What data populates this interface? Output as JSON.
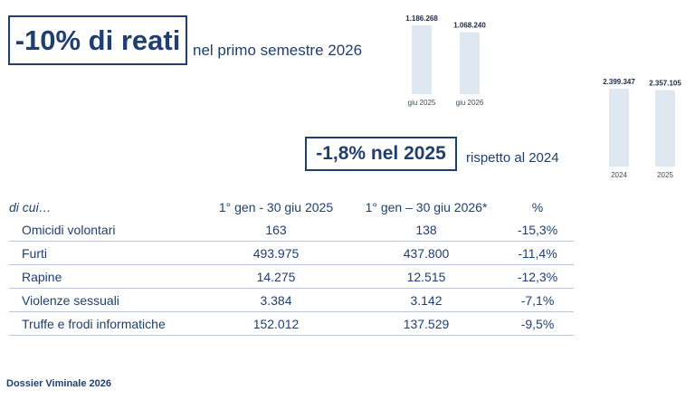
{
  "headline": {
    "main": "-10% di reati",
    "sub": "nel primo semestre 2026"
  },
  "headline2": {
    "main": "-1,8% nel 2025",
    "sub": "rispetto al 2024"
  },
  "chart_data": [
    {
      "type": "bar",
      "categories": [
        "giu 2025",
        "giu 2026"
      ],
      "values": [
        1186268,
        1068240
      ],
      "value_labels": [
        "1.186.268",
        "1.068.240"
      ],
      "ylim": [
        0,
        1186268
      ],
      "grid": false
    },
    {
      "type": "bar",
      "categories": [
        "2024",
        "2025"
      ],
      "values": [
        2399347,
        2357105
      ],
      "value_labels": [
        "2.399.347",
        "2.357.105"
      ],
      "ylim": [
        0,
        2399347
      ],
      "grid": false
    }
  ],
  "table": {
    "headers": [
      "di cui…",
      "1° gen - 30 giu 2025",
      "1° gen – 30 giu 2026*",
      "%"
    ],
    "rows": [
      [
        "Omicidi volontari",
        "163",
        "138",
        "-15,3%"
      ],
      [
        "Furti",
        "493.975",
        "437.800",
        "-11,4%"
      ],
      [
        "Rapine",
        "14.275",
        "12.515",
        "-12,3%"
      ],
      [
        "Violenze sessuali",
        "3.384",
        "3.142",
        "-7,1%"
      ],
      [
        "Truffe e frodi informatiche",
        "152.012",
        "137.529",
        "-9,5%"
      ]
    ]
  },
  "footer": "Dossier Viminale 2026",
  "colors": {
    "accent": "#1f3f6e",
    "bar": "#dfe7f1",
    "border": "#b7c6db"
  }
}
